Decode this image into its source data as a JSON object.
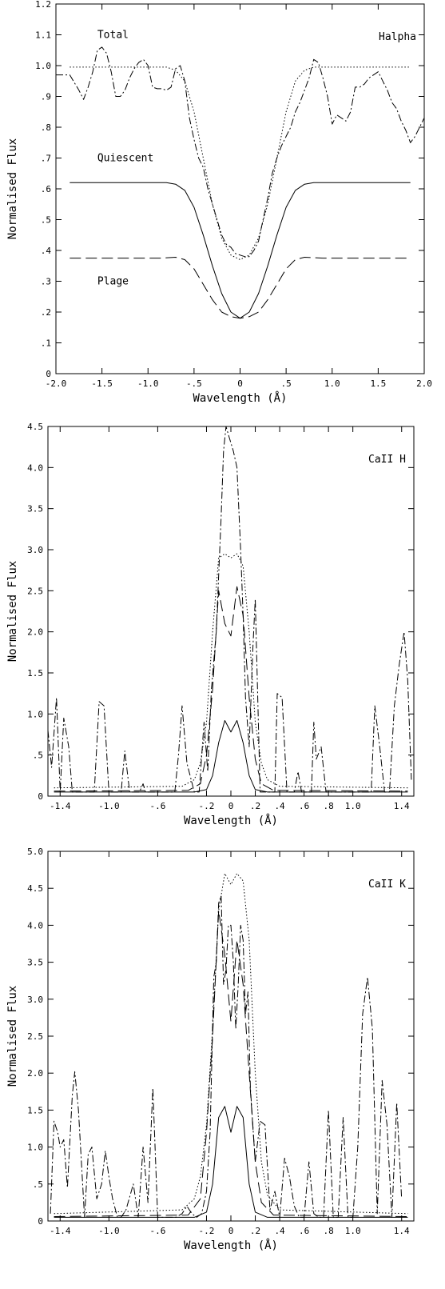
{
  "chart_data": [
    {
      "type": "line",
      "id": "halpha",
      "annotation": "Halpha",
      "xlabel": "Wavelength (Å)",
      "ylabel": "Normalised Flux",
      "xlim": [
        -2.0,
        2.0
      ],
      "ylim": [
        0,
        1.2
      ],
      "xticks": [
        -2.0,
        -1.5,
        -1.0,
        -0.5,
        0,
        0.5,
        1.0,
        1.5,
        2.0
      ],
      "xtick_labels": [
        "-2.0",
        "-1.5",
        "-1.0",
        "-.5",
        "0",
        ".5",
        "1.0",
        "1.5",
        "2.0"
      ],
      "yticks": [
        0,
        0.1,
        0.2,
        0.3,
        0.4,
        0.5,
        0.6,
        0.7,
        0.8,
        0.9,
        1.0,
        1.1,
        1.2
      ],
      "ytick_labels": [
        "0",
        ".1",
        ".2",
        ".3",
        ".4",
        ".5",
        ".6",
        ".7",
        ".8",
        ".9",
        "1.0",
        "1.1",
        "1.2"
      ],
      "labels": [
        {
          "text": "Total",
          "x": -1.55,
          "y": 1.09
        },
        {
          "text": "Quiescent",
          "x": -1.55,
          "y": 0.69
        },
        {
          "text": "Plage",
          "x": -1.55,
          "y": 0.29
        }
      ],
      "series": [
        {
          "style": "solid",
          "x": [
            -1.85,
            -0.8,
            -0.7,
            -0.6,
            -0.5,
            -0.4,
            -0.3,
            -0.2,
            -0.1,
            0,
            0.1,
            0.2,
            0.3,
            0.4,
            0.5,
            0.6,
            0.7,
            0.8,
            1.85
          ],
          "y": [
            0.62,
            0.62,
            0.615,
            0.595,
            0.54,
            0.45,
            0.35,
            0.26,
            0.2,
            0.18,
            0.2,
            0.26,
            0.35,
            0.45,
            0.54,
            0.595,
            0.615,
            0.62,
            0.62
          ]
        },
        {
          "style": "longdash",
          "x": [
            -1.85,
            -0.85,
            -0.7,
            -0.6,
            -0.5,
            -0.4,
            -0.3,
            -0.2,
            -0.1,
            0,
            0.1,
            0.2,
            0.3,
            0.4,
            0.5,
            0.6,
            0.7,
            0.9,
            1.85
          ],
          "y": [
            0.375,
            0.375,
            0.378,
            0.37,
            0.34,
            0.29,
            0.24,
            0.2,
            0.185,
            0.18,
            0.185,
            0.2,
            0.24,
            0.29,
            0.34,
            0.37,
            0.378,
            0.375,
            0.375
          ]
        },
        {
          "style": "dotted",
          "x": [
            -1.85,
            -0.8,
            -0.7,
            -0.6,
            -0.5,
            -0.4,
            -0.3,
            -0.2,
            -0.1,
            0,
            0.1,
            0.2,
            0.3,
            0.4,
            0.5,
            0.6,
            0.7,
            0.8,
            1.85
          ],
          "y": [
            0.995,
            0.995,
            0.985,
            0.95,
            0.85,
            0.7,
            0.55,
            0.44,
            0.385,
            0.37,
            0.385,
            0.44,
            0.55,
            0.7,
            0.85,
            0.95,
            0.985,
            0.995,
            0.995
          ]
        },
        {
          "style": "dashdot",
          "x": [
            -2.0,
            -1.85,
            -1.75,
            -1.7,
            -1.65,
            -1.6,
            -1.55,
            -1.5,
            -1.45,
            -1.4,
            -1.35,
            -1.3,
            -1.25,
            -1.2,
            -1.15,
            -1.1,
            -1.05,
            -1.0,
            -0.95,
            -0.9,
            -0.85,
            -0.8,
            -0.75,
            -0.7,
            -0.65,
            -0.6,
            -0.55,
            -0.5,
            -0.45,
            -0.4,
            -0.35,
            -0.3,
            -0.25,
            -0.2,
            -0.15,
            -0.1,
            -0.05,
            0,
            0.05,
            0.1,
            0.15,
            0.2,
            0.25,
            0.3,
            0.35,
            0.4,
            0.45,
            0.5,
            0.55,
            0.6,
            0.65,
            0.7,
            0.75,
            0.8,
            0.85,
            0.9,
            0.95,
            1.0,
            1.05,
            1.1,
            1.15,
            1.2,
            1.25,
            1.3,
            1.35,
            1.4,
            1.45,
            1.5,
            1.55,
            1.6,
            1.65,
            1.7,
            1.75,
            1.8,
            1.85,
            1.9,
            1.95,
            2.0
          ],
          "y": [
            0.97,
            0.97,
            0.92,
            0.89,
            0.93,
            0.98,
            1.05,
            1.06,
            1.04,
            0.98,
            0.9,
            0.9,
            0.92,
            0.96,
            0.99,
            1.01,
            1.02,
            1.0,
            0.93,
            0.925,
            0.925,
            0.92,
            0.93,
            0.99,
            1.0,
            0.95,
            0.83,
            0.76,
            0.7,
            0.67,
            0.6,
            0.55,
            0.5,
            0.45,
            0.42,
            0.41,
            0.39,
            0.385,
            0.38,
            0.38,
            0.4,
            0.43,
            0.5,
            0.57,
            0.65,
            0.7,
            0.74,
            0.77,
            0.8,
            0.85,
            0.88,
            0.92,
            0.96,
            1.02,
            1.01,
            0.96,
            0.9,
            0.81,
            0.84,
            0.83,
            0.82,
            0.85,
            0.93,
            0.93,
            0.94,
            0.96,
            0.97,
            0.98,
            0.95,
            0.92,
            0.88,
            0.86,
            0.82,
            0.79,
            0.75,
            0.77,
            0.8,
            0.83
          ]
        }
      ]
    },
    {
      "type": "line",
      "id": "caii-h",
      "annotation": "CaII H",
      "xlabel": "Wavelength (Å)",
      "ylabel": "Normalised Flux",
      "xlim": [
        -1.5,
        1.5
      ],
      "ylim": [
        0,
        4.5
      ],
      "xticks": [
        -1.4,
        -1.0,
        -0.6,
        -0.2,
        0,
        0.2,
        0.4,
        0.6,
        0.8,
        1.0,
        1.4
      ],
      "xtick_labels": [
        "-1.4",
        "-1.0",
        "-.6",
        "-.2",
        "0",
        ".2",
        ".4",
        ".6",
        ".8",
        "1.0",
        "1.4"
      ],
      "yticks": [
        0,
        0.5,
        1.0,
        1.5,
        2.0,
        2.5,
        3.0,
        3.5,
        4.0,
        4.5
      ],
      "ytick_labels": [
        "0",
        ".5",
        "1.0",
        "1.5",
        "2.0",
        "2.5",
        "3.0",
        "3.5",
        "4.0",
        "4.5"
      ],
      "series": [
        {
          "style": "solid",
          "x": [
            -1.45,
            -0.3,
            -0.2,
            -0.15,
            -0.1,
            -0.05,
            0,
            0.05,
            0.1,
            0.15,
            0.2,
            0.3,
            1.45
          ],
          "y": [
            0.05,
            0.05,
            0.08,
            0.25,
            0.65,
            0.92,
            0.78,
            0.92,
            0.65,
            0.25,
            0.08,
            0.05,
            0.05
          ]
        },
        {
          "style": "longdash",
          "x": [
            -1.45,
            -0.35,
            -0.25,
            -0.2,
            -0.15,
            -0.1,
            -0.05,
            0,
            0.05,
            0.1,
            0.15,
            0.2,
            0.25,
            0.35,
            1.45
          ],
          "y": [
            0.06,
            0.07,
            0.15,
            0.5,
            1.3,
            2.5,
            2.1,
            1.95,
            2.55,
            2.2,
            1.2,
            0.45,
            0.15,
            0.07,
            0.06
          ]
        },
        {
          "style": "dotted",
          "x": [
            -1.45,
            -0.4,
            -0.3,
            -0.25,
            -0.2,
            -0.15,
            -0.1,
            -0.05,
            0,
            0.05,
            0.1,
            0.15,
            0.2,
            0.25,
            0.3,
            0.4,
            1.45
          ],
          "y": [
            0.1,
            0.12,
            0.2,
            0.4,
            0.9,
            2.0,
            2.9,
            2.95,
            2.9,
            2.95,
            2.8,
            2.0,
            0.9,
            0.4,
            0.2,
            0.12,
            0.1
          ]
        },
        {
          "style": "dashdot",
          "x": [
            -1.5,
            -1.47,
            -1.43,
            -1.4,
            -1.37,
            -1.33,
            -1.3,
            -1.25,
            -1.2,
            -1.15,
            -1.12,
            -1.08,
            -1.04,
            -1.0,
            -0.95,
            -0.9,
            -0.87,
            -0.83,
            -0.8,
            -0.75,
            -0.72,
            -0.7,
            -0.6,
            -0.5,
            -0.46,
            -0.43,
            -0.4,
            -0.36,
            -0.3,
            -0.26,
            -0.22,
            -0.19,
            -0.16,
            -0.12,
            -0.08,
            -0.06,
            -0.04,
            -0.02,
            0,
            0.02,
            0.05,
            0.08,
            0.1,
            0.12,
            0.15,
            0.18,
            0.2,
            0.22,
            0.24,
            0.28,
            0.3,
            0.34,
            0.36,
            0.38,
            0.42,
            0.46,
            0.48,
            0.52,
            0.55,
            0.58,
            0.62,
            0.66,
            0.68,
            0.7,
            0.74,
            0.78,
            0.8,
            0.85,
            0.9,
            0.95,
            1.0,
            1.05,
            1.1,
            1.15,
            1.18,
            1.22,
            1.26,
            1.3,
            1.34,
            1.38,
            1.42,
            1.45,
            1.48
          ],
          "y": [
            0.8,
            0.35,
            1.2,
            0.05,
            0.95,
            0.6,
            0.05,
            0.05,
            0.05,
            0.05,
            0.05,
            1.15,
            1.1,
            0.05,
            0.05,
            0.05,
            0.55,
            0.05,
            0.05,
            0.05,
            0.15,
            0.05,
            0.05,
            0.05,
            0.05,
            0.5,
            1.1,
            0.4,
            0.05,
            0.05,
            0.9,
            0.3,
            1.3,
            2.0,
            3.4,
            4.2,
            4.5,
            4.4,
            4.3,
            4.2,
            4.0,
            3.0,
            2.2,
            1.2,
            0.6,
            1.8,
            2.4,
            1.2,
            0.05,
            0.05,
            0.05,
            0.05,
            0.05,
            1.25,
            1.2,
            0.05,
            0.05,
            0.05,
            0.3,
            0.05,
            0.05,
            0.05,
            0.9,
            0.45,
            0.6,
            0.05,
            0.05,
            0.05,
            0.05,
            0.05,
            0.05,
            0.05,
            0.05,
            0.05,
            1.1,
            0.6,
            0.05,
            0.05,
            1.1,
            1.6,
            2.0,
            1.4,
            0.2
          ]
        }
      ]
    },
    {
      "type": "line",
      "id": "caii-k",
      "annotation": "CaII K",
      "xlabel": "Wavelength (Å)",
      "ylabel": "Normalised Flux",
      "xlim": [
        -1.5,
        1.5
      ],
      "ylim": [
        0,
        5.0
      ],
      "xticks": [
        -1.4,
        -1.0,
        -0.6,
        -0.2,
        0,
        0.2,
        0.4,
        0.6,
        0.8,
        1.0,
        1.4
      ],
      "xtick_labels": [
        "-1.4",
        "-1.0",
        "-.6",
        "-.2",
        "0",
        ".2",
        ".4",
        ".6",
        ".8",
        "1.0",
        "1.4"
      ],
      "yticks": [
        0,
        0.5,
        1.0,
        1.5,
        2.0,
        2.5,
        3.0,
        3.5,
        4.0,
        4.5,
        5.0
      ],
      "ytick_labels": [
        "0",
        ".5",
        "1.0",
        "1.5",
        "2.0",
        "2.5",
        "3.0",
        "3.5",
        "4.0",
        "4.5",
        "5.0"
      ],
      "series": [
        {
          "style": "solid",
          "x": [
            -1.45,
            -0.3,
            -0.2,
            -0.15,
            -0.1,
            -0.05,
            0,
            0.05,
            0.1,
            0.15,
            0.2,
            0.3,
            1.45
          ],
          "y": [
            0.05,
            0.05,
            0.12,
            0.5,
            1.4,
            1.55,
            1.2,
            1.55,
            1.4,
            0.5,
            0.12,
            0.05,
            0.05
          ]
        },
        {
          "style": "longdash",
          "x": [
            -1.45,
            -0.35,
            -0.25,
            -0.2,
            -0.15,
            -0.1,
            -0.05,
            0,
            0.05,
            0.1,
            0.15,
            0.2,
            0.25,
            0.35,
            1.45
          ],
          "y": [
            0.06,
            0.08,
            0.3,
            1.2,
            2.5,
            4.2,
            3.6,
            2.7,
            3.8,
            3.2,
            2.0,
            0.8,
            0.25,
            0.08,
            0.06
          ]
        },
        {
          "style": "dotted",
          "x": [
            -1.45,
            -0.4,
            -0.3,
            -0.25,
            -0.2,
            -0.15,
            -0.1,
            -0.05,
            0,
            0.05,
            0.1,
            0.15,
            0.2,
            0.25,
            0.3,
            0.4,
            1.45
          ],
          "y": [
            0.1,
            0.15,
            0.3,
            0.6,
            1.3,
            2.6,
            4.2,
            4.7,
            4.55,
            4.7,
            4.6,
            3.8,
            2.0,
            0.8,
            0.35,
            0.15,
            0.1
          ]
        },
        {
          "style": "dashdot",
          "x": [
            -1.48,
            -1.45,
            -1.42,
            -1.4,
            -1.37,
            -1.34,
            -1.3,
            -1.28,
            -1.25,
            -1.2,
            -1.17,
            -1.14,
            -1.1,
            -1.06,
            -1.03,
            -1.0,
            -0.97,
            -0.93,
            -0.9,
            -0.86,
            -0.8,
            -0.76,
            -0.72,
            -0.68,
            -0.64,
            -0.6,
            -0.56,
            -0.5,
            -0.45,
            -0.4,
            -0.36,
            -0.32,
            -0.28,
            -0.24,
            -0.2,
            -0.17,
            -0.14,
            -0.12,
            -0.1,
            -0.08,
            -0.06,
            -0.04,
            -0.02,
            0,
            0.02,
            0.04,
            0.06,
            0.08,
            0.1,
            0.12,
            0.14,
            0.16,
            0.2,
            0.24,
            0.28,
            0.32,
            0.36,
            0.4,
            0.44,
            0.48,
            0.52,
            0.56,
            0.6,
            0.64,
            0.68,
            0.72,
            0.76,
            0.8,
            0.84,
            0.88,
            0.92,
            0.96,
            1.0,
            1.04,
            1.08,
            1.12,
            1.16,
            1.2,
            1.24,
            1.28,
            1.32,
            1.36,
            1.4
          ],
          "y": [
            0.1,
            1.35,
            1.2,
            1.0,
            1.1,
            0.45,
            1.7,
            2.02,
            1.5,
            0.05,
            0.9,
            1.0,
            0.3,
            0.5,
            0.95,
            0.6,
            0.3,
            0.05,
            0.05,
            0.15,
            0.5,
            0.05,
            1.0,
            0.25,
            1.8,
            0.05,
            0.05,
            0.05,
            0.05,
            0.1,
            0.2,
            0.1,
            0.05,
            0.1,
            0.4,
            1.2,
            3.3,
            3.5,
            4.3,
            4.4,
            3.2,
            3.4,
            4.0,
            4.0,
            3.5,
            2.6,
            3.2,
            4.0,
            3.8,
            2.8,
            3.1,
            1.8,
            0.8,
            1.35,
            1.3,
            0.15,
            0.4,
            0.05,
            0.85,
            0.6,
            0.2,
            0.05,
            0.05,
            0.8,
            0.1,
            0.05,
            0.05,
            1.5,
            0.05,
            0.05,
            1.4,
            0.05,
            0.05,
            1.0,
            2.8,
            3.3,
            2.6,
            0.1,
            1.9,
            1.3,
            0.05,
            1.6,
            0.3
          ]
        }
      ]
    }
  ]
}
